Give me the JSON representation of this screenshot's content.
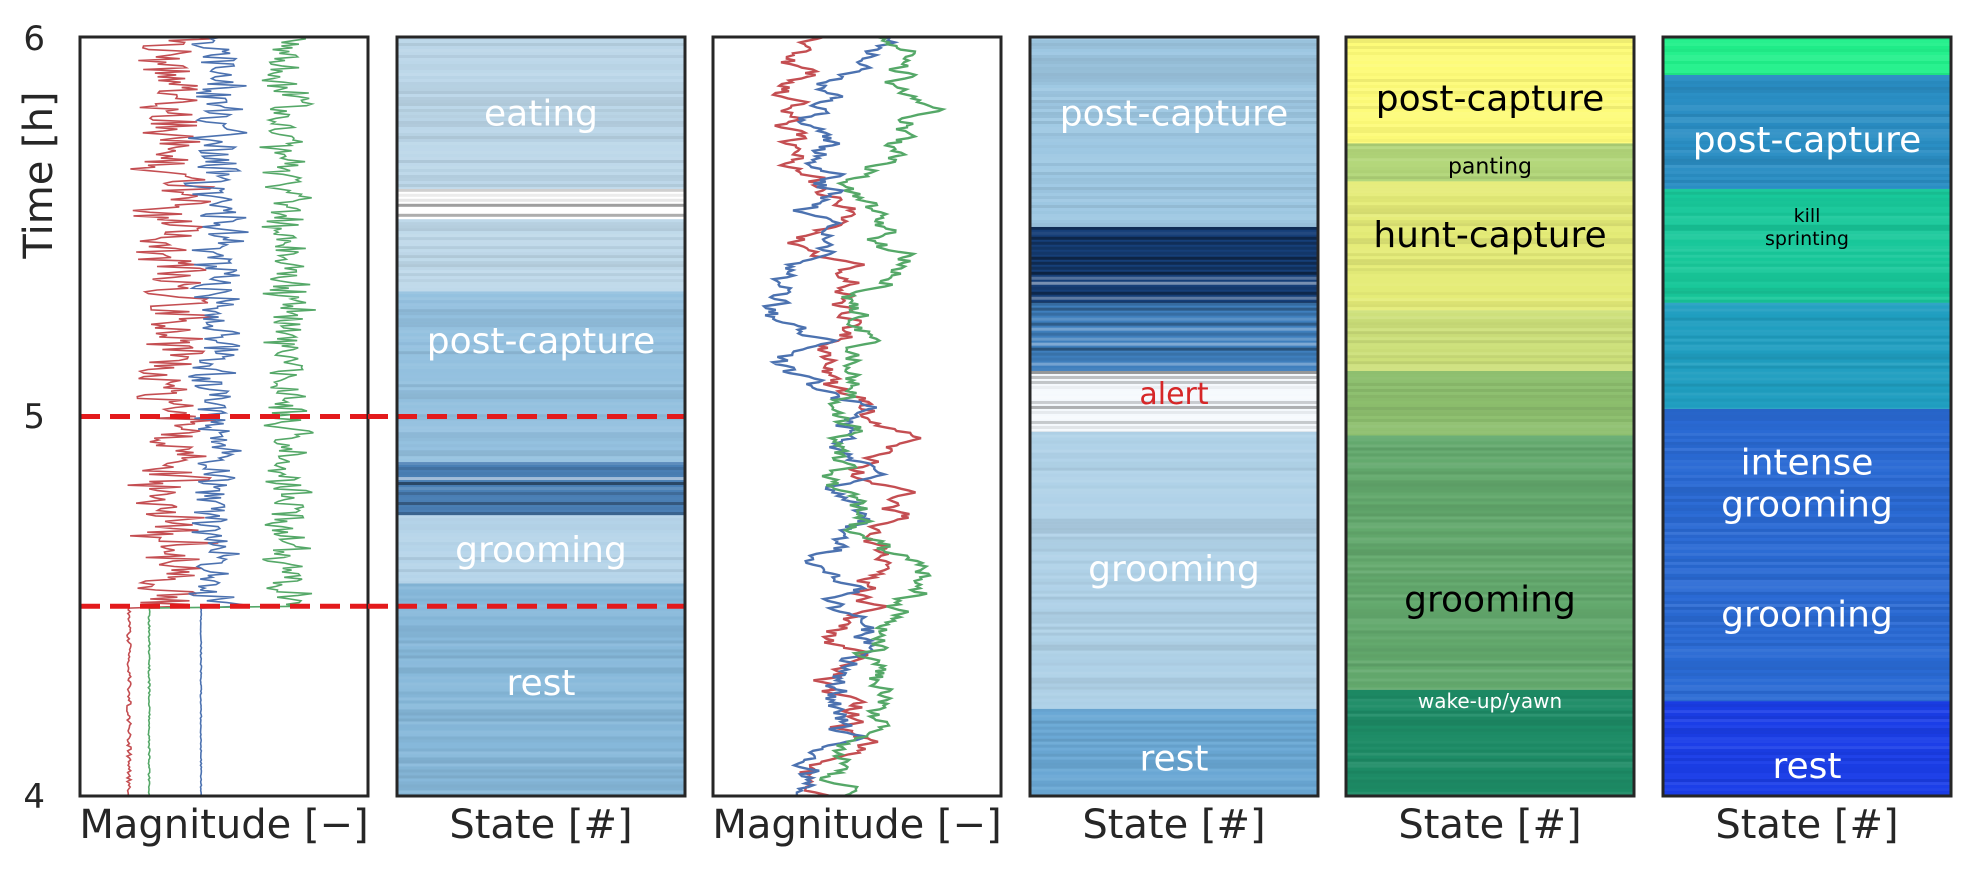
{
  "figure": {
    "ylabel": "Time [h]",
    "yticks": [
      "4",
      "5",
      "6"
    ],
    "ylim": [
      4,
      6
    ]
  },
  "chart_data": [
    {
      "type": "line",
      "panel": 1,
      "xlabel": "Magnitude [−]",
      "ylabel": "Time [h]",
      "ylim": [
        4,
        6
      ],
      "series_colors": [
        "#c44e52",
        "#4c72b0",
        "#55a868"
      ],
      "boundaries_h": [
        5.0,
        4.5
      ],
      "boundary_color": "#e31a1c"
    },
    {
      "type": "heatmap",
      "panel": 2,
      "xlabel": "State [#]",
      "ylim": [
        4,
        6
      ],
      "segments": [
        {
          "from": 4.0,
          "to": 4.56,
          "color": "#86b8da"
        },
        {
          "from": 4.56,
          "to": 4.74,
          "color": "#b5d4e9"
        },
        {
          "from": 4.74,
          "to": 4.88,
          "color": "#4a7fb5",
          "striped": true
        },
        {
          "from": 4.88,
          "to": 5.33,
          "color": "#93c0df"
        },
        {
          "from": 5.33,
          "to": 5.52,
          "color": "#bfd9ea"
        },
        {
          "from": 5.52,
          "to": 5.6,
          "color": "#ffffff",
          "striped": true
        },
        {
          "from": 5.6,
          "to": 6.0,
          "color": "#bcd7e9"
        }
      ],
      "labels": [
        {
          "text": "eating",
          "at": 5.8,
          "color": "#ffffff",
          "size": 36
        },
        {
          "text": "post-capture",
          "at": 5.2,
          "color": "#ffffff",
          "size": 36
        },
        {
          "text": "grooming",
          "at": 4.65,
          "color": "#ffffff",
          "size": 36
        },
        {
          "text": "rest",
          "at": 4.3,
          "color": "#ffffff",
          "size": 36
        }
      ],
      "boundaries_h": [
        5.0,
        4.5
      ]
    },
    {
      "type": "line",
      "panel": 3,
      "xlabel": "Magnitude [−]",
      "ylim": [
        4,
        6
      ],
      "series_colors": [
        "#c44e52",
        "#4c72b0",
        "#55a868"
      ]
    },
    {
      "type": "heatmap",
      "panel": 4,
      "xlabel": "State [#]",
      "ylim": [
        4,
        6
      ],
      "segments": [
        {
          "from": 4.0,
          "to": 4.23,
          "color": "#6aa8d5"
        },
        {
          "from": 4.23,
          "to": 4.96,
          "color": "#b0d2e8"
        },
        {
          "from": 4.96,
          "to": 5.12,
          "color": "#f5f9fd",
          "striped": true
        },
        {
          "from": 5.12,
          "to": 5.3,
          "color": "#3f7fbd",
          "striped": true
        },
        {
          "from": 5.3,
          "to": 5.5,
          "color": "#163f78",
          "striped": true
        },
        {
          "from": 5.5,
          "to": 6.0,
          "color": "#9ec8e3"
        }
      ],
      "labels": [
        {
          "text": "post-capture",
          "at": 5.8,
          "color": "#ffffff",
          "size": 36
        },
        {
          "text": "alert",
          "at": 5.06,
          "color": "#d62728",
          "size": 30
        },
        {
          "text": "grooming",
          "at": 4.6,
          "color": "#ffffff",
          "size": 36
        },
        {
          "text": "rest",
          "at": 4.1,
          "color": "#ffffff",
          "size": 36
        }
      ]
    },
    {
      "type": "heatmap",
      "panel": 5,
      "xlabel": "State [#]",
      "ylim": [
        4,
        6
      ],
      "segments": [
        {
          "from": 4.0,
          "to": 4.28,
          "color": "#1d8c66"
        },
        {
          "from": 4.28,
          "to": 4.95,
          "color": "#63a96d"
        },
        {
          "from": 4.95,
          "to": 5.12,
          "color": "#8dbf6e"
        },
        {
          "from": 5.12,
          "to": 5.28,
          "color": "#cde07a"
        },
        {
          "from": 5.28,
          "to": 5.62,
          "color": "#e5ec78"
        },
        {
          "from": 5.62,
          "to": 5.72,
          "color": "#b3d77a"
        },
        {
          "from": 5.72,
          "to": 6.0,
          "color": "#fdfb78"
        }
      ],
      "labels": [
        {
          "text": "post-capture",
          "at": 5.84,
          "color": "#000000",
          "size": 36
        },
        {
          "text": "panting",
          "at": 5.66,
          "color": "#000000",
          "size": 22
        },
        {
          "text": "hunt-capture",
          "at": 5.48,
          "color": "#000000",
          "size": 36
        },
        {
          "text": "grooming",
          "at": 4.52,
          "color": "#000000",
          "size": 36
        },
        {
          "text": "wake-up/yawn",
          "at": 4.25,
          "color": "#ffffff",
          "size": 20
        }
      ]
    },
    {
      "type": "heatmap",
      "panel": 6,
      "xlabel": "State [#]",
      "ylim": [
        4,
        6
      ],
      "segments": [
        {
          "from": 4.0,
          "to": 4.25,
          "color": "#1b3ee8"
        },
        {
          "from": 4.25,
          "to": 5.02,
          "color": "#2a6ad4"
        },
        {
          "from": 5.02,
          "to": 5.3,
          "color": "#1f9ec0"
        },
        {
          "from": 5.3,
          "to": 5.6,
          "color": "#18c89a"
        },
        {
          "from": 5.6,
          "to": 5.9,
          "color": "#2a8ec4"
        },
        {
          "from": 5.9,
          "to": 6.0,
          "color": "#20f08a"
        }
      ],
      "labels": [
        {
          "text": "post-capture",
          "at": 5.73,
          "color": "#ffffff",
          "size": 36
        },
        {
          "text": "kill",
          "at": 5.53,
          "color": "#000000",
          "size": 19
        },
        {
          "text": "sprinting",
          "at": 5.47,
          "color": "#000000",
          "size": 19
        },
        {
          "text": "intense",
          "at": 4.88,
          "color": "#ffffff",
          "size": 36
        },
        {
          "text": "grooming",
          "at": 4.77,
          "color": "#ffffff",
          "size": 36
        },
        {
          "text": "grooming",
          "at": 4.48,
          "color": "#ffffff",
          "size": 36
        },
        {
          "text": "rest",
          "at": 4.08,
          "color": "#ffffff",
          "size": 36
        }
      ]
    }
  ]
}
